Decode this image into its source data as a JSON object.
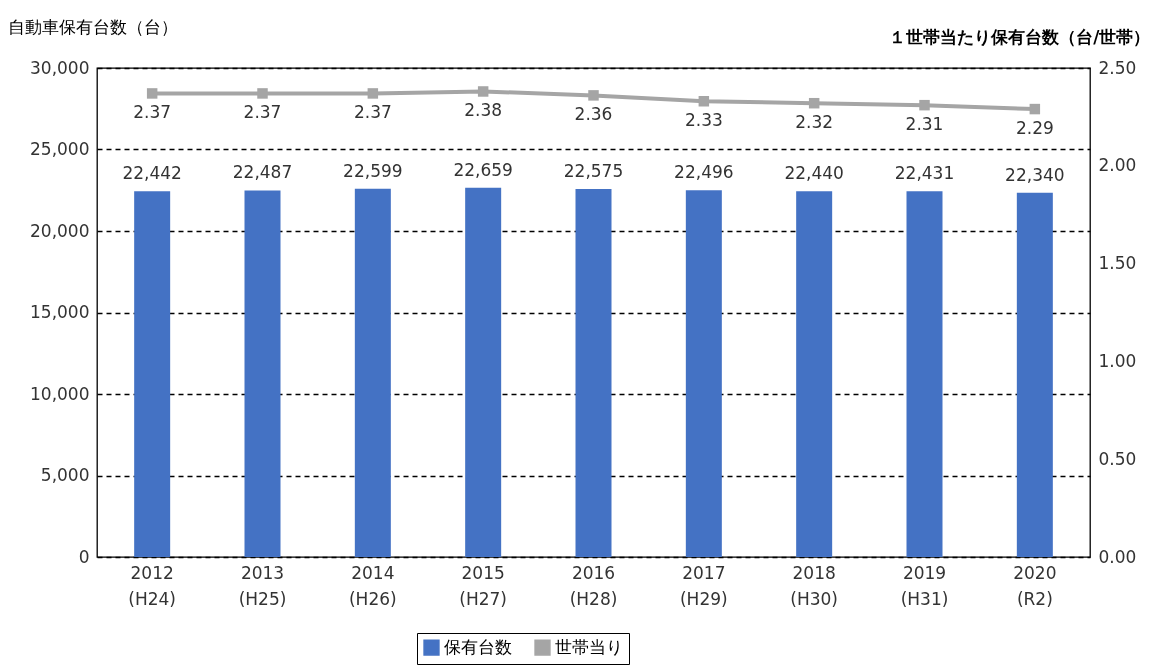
{
  "chart_data": {
    "type": "bar",
    "categories": [
      "2012\n(H24)",
      "2013\n(H25)",
      "2014\n(H26)",
      "2015\n(H27)",
      "2016\n(H28)",
      "2017\n(H29)",
      "2018\n(H30)",
      "2019\n(H31)",
      "2020\n(R2)"
    ],
    "ylabel": "自動車保有台数（台）",
    "y2label": "１世帯当たり保有台数（台/世帯）",
    "series": [
      {
        "name": "保有台数",
        "color": "#4472c4",
        "values": [
          22442,
          22487,
          22599,
          22659,
          22575,
          22496,
          22440,
          22431,
          22340
        ],
        "value_labels": [
          "22,442",
          "22,487",
          "22,599",
          "22,659",
          "22,575",
          "22,496",
          "22,440",
          "22,431",
          "22,340"
        ]
      },
      {
        "name": "世帯当り",
        "type": "line",
        "axis": "y2",
        "color": "#a5a5a5",
        "marker": "square",
        "values": [
          2.37,
          2.37,
          2.37,
          2.38,
          2.36,
          2.33,
          2.32,
          2.31,
          2.29
        ],
        "value_labels": [
          "2.37",
          "2.37",
          "2.37",
          "2.38",
          "2.36",
          "2.33",
          "2.32",
          "2.31",
          "2.29"
        ]
      }
    ],
    "ylim": [
      0,
      30000
    ],
    "yticks": [
      0,
      {
        "value": 5000,
        "label": "5,000"
      },
      {
        "value": 10000,
        "label": "10,000"
      },
      {
        "value": 15000,
        "label": "15,000"
      },
      {
        "value": 20000,
        "label": "20,000"
      },
      {
        "value": 25000,
        "label": "25,000"
      },
      {
        "value": 30000,
        "label": "30,000"
      }
    ],
    "y2lim": [
      0,
      2.5
    ],
    "y2ticks": [
      {
        "value": 0,
        "label": "0.00"
      },
      {
        "value": 0.5,
        "label": "0.50"
      },
      {
        "value": 1,
        "label": "1.00"
      },
      {
        "value": 1.5,
        "label": "1.50"
      },
      {
        "value": 2,
        "label": "2.00"
      },
      {
        "value": 2.5,
        "label": "2.50"
      }
    ],
    "grid": "y",
    "legend": "bottom"
  }
}
